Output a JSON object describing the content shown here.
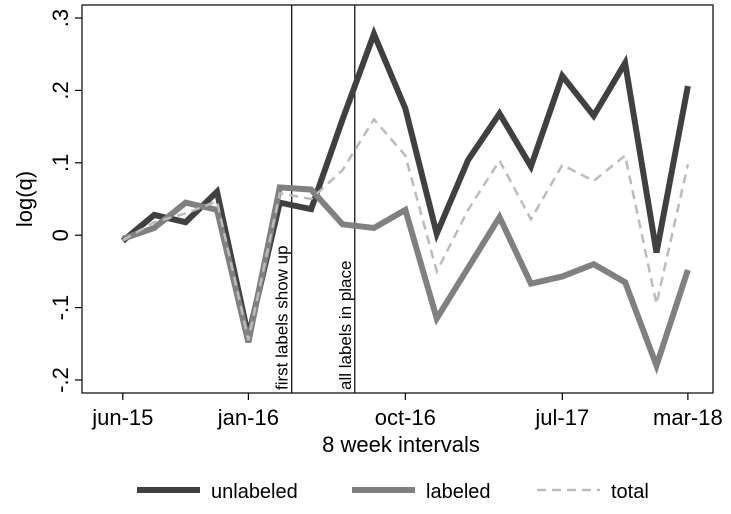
{
  "chart_data": {
    "type": "line",
    "xlabel": "8 week intervals",
    "ylabel": "log(q)",
    "categories": [
      "jun-15",
      null,
      null,
      null,
      "jan-16",
      null,
      null,
      null,
      null,
      "oct-16",
      null,
      null,
      null,
      null,
      "jul-17",
      null,
      null,
      null,
      "mar-18"
    ],
    "xlim": [
      -1.3,
      18.8
    ],
    "ylim": [
      -0.218,
      0.318
    ],
    "yticks": [
      {
        "value": -0.2,
        "label": "-.2"
      },
      {
        "value": -0.1,
        "label": "-.1"
      },
      0,
      {
        "value": 0.1,
        "label": ".1"
      },
      {
        "value": 0.2,
        "label": ".2"
      },
      {
        "value": 0.3,
        "label": ".3"
      }
    ],
    "grid": false,
    "legend": "bottom",
    "series": [
      {
        "name": "unlabeled",
        "color": "#404040",
        "dash": false,
        "values": [
          -0.008,
          0.028,
          0.018,
          0.06,
          -0.14,
          0.045,
          0.036,
          0.16,
          0.278,
          0.175,
          0.002,
          0.104,
          0.168,
          0.095,
          0.22,
          0.165,
          0.238,
          -0.024,
          0.206
        ]
      },
      {
        "name": "labeled",
        "color": "#808080",
        "dash": false,
        "values": [
          -0.005,
          0.01,
          0.045,
          0.035,
          -0.148,
          0.066,
          0.063,
          0.015,
          0.01,
          0.035,
          -0.115,
          -0.045,
          0.025,
          -0.067,
          -0.057,
          -0.04,
          -0.065,
          -0.18,
          -0.048
        ]
      },
      {
        "name": "total",
        "color": "#bbbbbb",
        "dash": true,
        "values": [
          -0.007,
          0.018,
          0.03,
          0.047,
          -0.145,
          0.058,
          0.05,
          0.09,
          0.16,
          0.11,
          -0.05,
          0.035,
          0.103,
          0.022,
          0.097,
          0.075,
          0.11,
          -0.095,
          0.098
        ]
      }
    ],
    "vlines": [
      {
        "x": 5.38,
        "label": "first labels show up"
      },
      {
        "x": 7.39,
        "label": "all labels in place"
      }
    ]
  }
}
